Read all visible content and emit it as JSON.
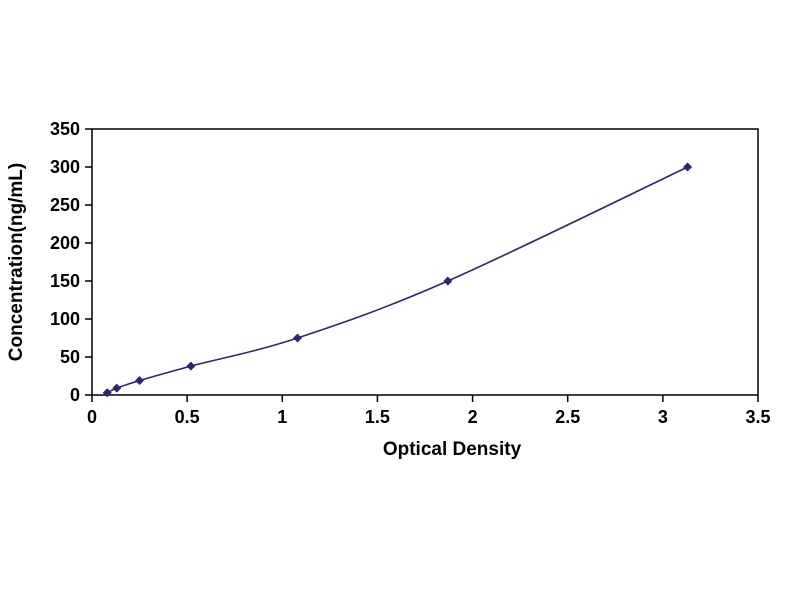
{
  "chart_data": {
    "type": "line",
    "title": "",
    "xlabel": "Optical Density",
    "ylabel": "Concentration(ng/mL)",
    "x": [
      0.08,
      0.13,
      0.25,
      0.52,
      1.08,
      1.87,
      3.13
    ],
    "y": [
      3,
      9,
      19,
      38,
      75,
      150,
      300
    ],
    "xlim": [
      0,
      3.5
    ],
    "ylim": [
      0,
      350
    ],
    "xticks": [
      0,
      0.5,
      1,
      1.5,
      2,
      2.5,
      3,
      3.5
    ],
    "xtick_labels": [
      "0",
      "0.5",
      "1",
      "1.5",
      "2",
      "2.5",
      "3",
      "3.5"
    ],
    "yticks": [
      0,
      50,
      100,
      150,
      200,
      250,
      300,
      350
    ],
    "ytick_labels": [
      "0",
      "50",
      "100",
      "150",
      "200",
      "250",
      "300",
      "350"
    ],
    "grid": false,
    "legend": null,
    "colors": {
      "line": "#29296d",
      "marker": "#29296d",
      "frame": "#000000",
      "text": "#000000",
      "background": "#ffffff"
    },
    "marker_shape": "diamond"
  }
}
